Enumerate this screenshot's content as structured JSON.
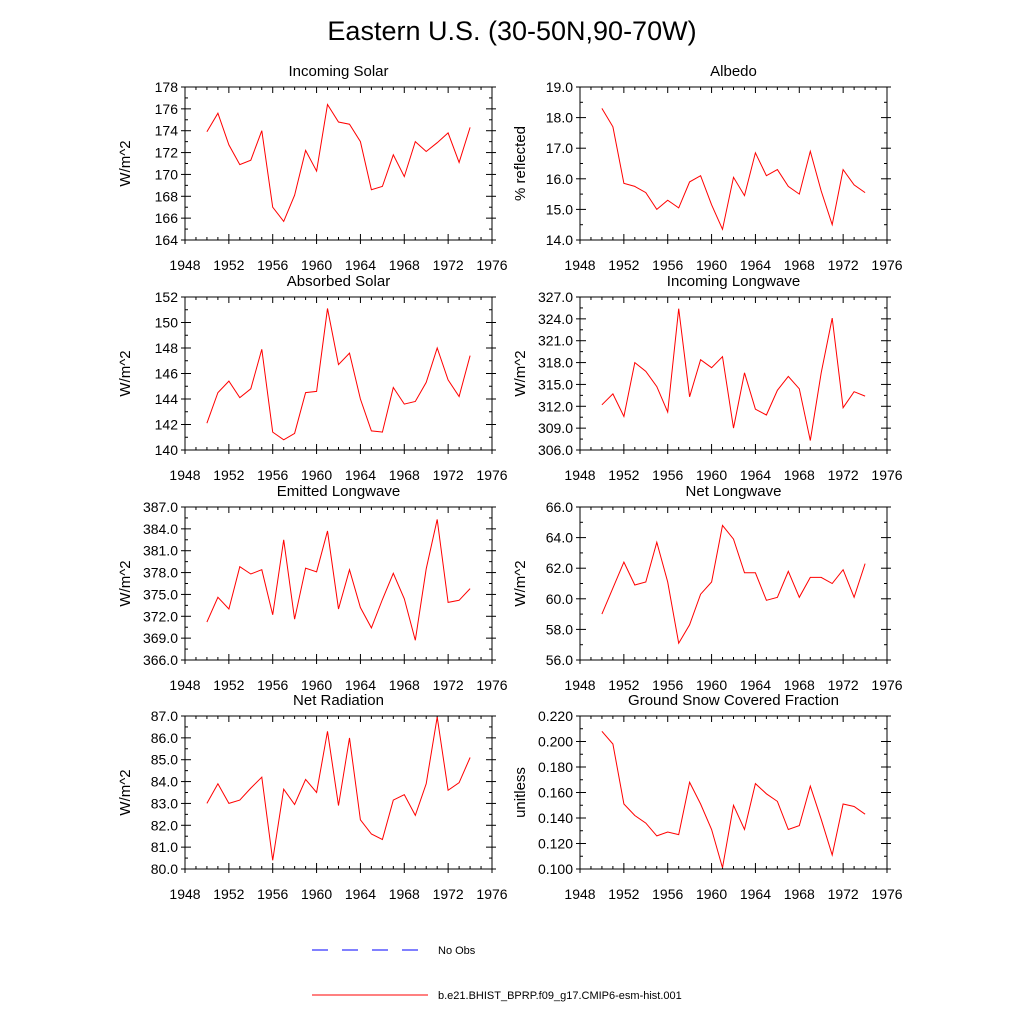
{
  "title": "Eastern U.S. (30-50N,90-70W)",
  "colors": {
    "model": "#ff0000",
    "obs": "#0000ff"
  },
  "legend": [
    {
      "label": "No Obs",
      "style": "dashed",
      "color": "#0000ff"
    },
    {
      "label": "b.e21.BHIST_BPRP.f09_g17.CMIP6-esm-hist.001",
      "style": "solid",
      "color": "#ff0000"
    }
  ],
  "chart_data": [
    {
      "type": "line",
      "title": "Incoming Solar",
      "ylabel": "W/m^2",
      "xlim": [
        1948,
        1976
      ],
      "xticks": [
        "1948",
        "1952",
        "1956",
        "1960",
        "1964",
        "1968",
        "1972",
        "1976"
      ],
      "ylim": [
        164,
        178
      ],
      "yticks": [
        "164",
        "166",
        "168",
        "170",
        "172",
        "174",
        "176",
        "178"
      ],
      "x": [
        1950,
        1951,
        1952,
        1953,
        1954,
        1955,
        1956,
        1957,
        1958,
        1959,
        1960,
        1961,
        1962,
        1963,
        1964,
        1965,
        1966,
        1967,
        1968,
        1969,
        1970,
        1971,
        1972,
        1973,
        1974
      ],
      "series": [
        {
          "name": "b.e21.BHIST_BPRP.f09_g17.CMIP6-esm-hist.001",
          "values": [
            173.9,
            175.6,
            172.7,
            170.9,
            171.3,
            174.0,
            167.0,
            165.7,
            168.1,
            172.2,
            170.3,
            176.4,
            174.8,
            174.6,
            173.0,
            168.6,
            168.9,
            171.8,
            169.8,
            173.0,
            172.1,
            172.9,
            173.8,
            171.1,
            174.3
          ]
        }
      ]
    },
    {
      "type": "line",
      "title": "Albedo",
      "ylabel": "% reflected",
      "xlim": [
        1948,
        1976
      ],
      "xticks": [
        "1948",
        "1952",
        "1956",
        "1960",
        "1964",
        "1968",
        "1972",
        "1976"
      ],
      "ylim": [
        14.0,
        19.0
      ],
      "yticks": [
        "14.0",
        "15.0",
        "16.0",
        "17.0",
        "18.0",
        "19.0"
      ],
      "x": [
        1950,
        1951,
        1952,
        1953,
        1954,
        1955,
        1956,
        1957,
        1958,
        1959,
        1960,
        1961,
        1962,
        1963,
        1964,
        1965,
        1966,
        1967,
        1968,
        1969,
        1970,
        1971,
        1972,
        1973,
        1974
      ],
      "series": [
        {
          "name": "b.e21.BHIST_BPRP.f09_g17.CMIP6-esm-hist.001",
          "values": [
            18.3,
            17.7,
            15.85,
            15.75,
            15.55,
            15.0,
            15.3,
            15.05,
            15.9,
            16.1,
            15.15,
            14.35,
            16.05,
            15.45,
            16.85,
            16.1,
            16.3,
            15.75,
            15.5,
            16.9,
            15.6,
            14.5,
            16.3,
            15.8,
            15.55
          ]
        }
      ]
    },
    {
      "type": "line",
      "title": "Absorbed Solar",
      "ylabel": "W/m^2",
      "xlim": [
        1948,
        1976
      ],
      "xticks": [
        "1948",
        "1952",
        "1956",
        "1960",
        "1964",
        "1968",
        "1972",
        "1976"
      ],
      "ylim": [
        140,
        152
      ],
      "yticks": [
        "140",
        "142",
        "144",
        "146",
        "148",
        "150",
        "152"
      ],
      "x": [
        1950,
        1951,
        1952,
        1953,
        1954,
        1955,
        1956,
        1957,
        1958,
        1959,
        1960,
        1961,
        1962,
        1963,
        1964,
        1965,
        1966,
        1967,
        1968,
        1969,
        1970,
        1971,
        1972,
        1973,
        1974
      ],
      "series": [
        {
          "name": "b.e21.BHIST_BPRP.f09_g17.CMIP6-esm-hist.001",
          "values": [
            142.1,
            144.5,
            145.4,
            144.1,
            144.8,
            147.9,
            141.4,
            140.8,
            141.3,
            144.5,
            144.6,
            151.1,
            146.7,
            147.6,
            144.0,
            141.5,
            141.4,
            144.9,
            143.6,
            143.8,
            145.3,
            148.0,
            145.5,
            144.2,
            147.4
          ]
        }
      ]
    },
    {
      "type": "line",
      "title": "Incoming Longwave",
      "ylabel": "W/m^2",
      "xlim": [
        1948,
        1976
      ],
      "xticks": [
        "1948",
        "1952",
        "1956",
        "1960",
        "1964",
        "1968",
        "1972",
        "1976"
      ],
      "ylim": [
        306.0,
        327.0
      ],
      "yticks": [
        "306.0",
        "309.0",
        "312.0",
        "315.0",
        "318.0",
        "321.0",
        "324.0",
        "327.0"
      ],
      "x": [
        1950,
        1951,
        1952,
        1953,
        1954,
        1955,
        1956,
        1957,
        1958,
        1959,
        1960,
        1961,
        1962,
        1963,
        1964,
        1965,
        1966,
        1967,
        1968,
        1969,
        1970,
        1971,
        1972,
        1973,
        1974
      ],
      "series": [
        {
          "name": "b.e21.BHIST_BPRP.f09_g17.CMIP6-esm-hist.001",
          "values": [
            312.2,
            313.7,
            310.6,
            318.0,
            316.8,
            314.7,
            311.2,
            325.4,
            313.3,
            318.4,
            317.3,
            318.8,
            309.0,
            316.6,
            311.6,
            310.8,
            314.2,
            316.1,
            314.4,
            307.3,
            316.6,
            324.1,
            311.8,
            314.0,
            313.4
          ]
        }
      ]
    },
    {
      "type": "line",
      "title": "Emitted Longwave",
      "ylabel": "W/m^2",
      "xlim": [
        1948,
        1976
      ],
      "xticks": [
        "1948",
        "1952",
        "1956",
        "1960",
        "1964",
        "1968",
        "1972",
        "1976"
      ],
      "ylim": [
        366.0,
        387.0
      ],
      "yticks": [
        "366.0",
        "369.0",
        "372.0",
        "375.0",
        "378.0",
        "381.0",
        "384.0",
        "387.0"
      ],
      "x": [
        1950,
        1951,
        1952,
        1953,
        1954,
        1955,
        1956,
        1957,
        1958,
        1959,
        1960,
        1961,
        1962,
        1963,
        1964,
        1965,
        1966,
        1967,
        1968,
        1969,
        1970,
        1971,
        1972,
        1973,
        1974
      ],
      "series": [
        {
          "name": "b.e21.BHIST_BPRP.f09_g17.CMIP6-esm-hist.001",
          "values": [
            371.2,
            374.6,
            373.0,
            378.8,
            377.8,
            378.4,
            372.2,
            382.5,
            371.6,
            378.6,
            378.1,
            383.7,
            373.0,
            378.4,
            373.2,
            370.4,
            374.3,
            377.9,
            374.4,
            368.7,
            378.5,
            385.3,
            373.9,
            374.2,
            375.8
          ]
        }
      ]
    },
    {
      "type": "line",
      "title": "Net Longwave",
      "ylabel": "W/m^2",
      "xlim": [
        1948,
        1976
      ],
      "xticks": [
        "1948",
        "1952",
        "1956",
        "1960",
        "1964",
        "1968",
        "1972",
        "1976"
      ],
      "ylim": [
        56.0,
        66.0
      ],
      "yticks": [
        "56.0",
        "58.0",
        "60.0",
        "62.0",
        "64.0",
        "66.0"
      ],
      "x": [
        1950,
        1951,
        1952,
        1953,
        1954,
        1955,
        1956,
        1957,
        1958,
        1959,
        1960,
        1961,
        1962,
        1963,
        1964,
        1965,
        1966,
        1967,
        1968,
        1969,
        1970,
        1971,
        1972,
        1973,
        1974
      ],
      "series": [
        {
          "name": "b.e21.BHIST_BPRP.f09_g17.CMIP6-esm-hist.001",
          "values": [
            59.0,
            60.7,
            62.4,
            60.9,
            61.1,
            63.7,
            61.1,
            57.1,
            58.3,
            60.3,
            61.1,
            64.8,
            63.9,
            61.7,
            61.7,
            59.9,
            60.1,
            61.8,
            60.1,
            61.4,
            61.4,
            61.0,
            61.9,
            60.1,
            62.3
          ]
        }
      ]
    },
    {
      "type": "line",
      "title": "Net Radiation",
      "ylabel": "W/m^2",
      "xlim": [
        1948,
        1976
      ],
      "xticks": [
        "1948",
        "1952",
        "1956",
        "1960",
        "1964",
        "1968",
        "1972",
        "1976"
      ],
      "ylim": [
        80.0,
        87.0
      ],
      "yticks": [
        "80.0",
        "81.0",
        "82.0",
        "83.0",
        "84.0",
        "85.0",
        "86.0",
        "87.0"
      ],
      "x": [
        1950,
        1951,
        1952,
        1953,
        1954,
        1955,
        1956,
        1957,
        1958,
        1959,
        1960,
        1961,
        1962,
        1963,
        1964,
        1965,
        1966,
        1967,
        1968,
        1969,
        1970,
        1971,
        1972,
        1973,
        1974
      ],
      "series": [
        {
          "name": "b.e21.BHIST_BPRP.f09_g17.CMIP6-esm-hist.001",
          "values": [
            83.0,
            83.9,
            83.0,
            83.15,
            83.7,
            84.2,
            80.4,
            83.65,
            82.95,
            84.1,
            83.5,
            86.3,
            82.9,
            86.0,
            82.25,
            81.6,
            81.35,
            83.15,
            83.4,
            82.45,
            83.9,
            86.95,
            83.6,
            83.95,
            85.1
          ]
        }
      ]
    },
    {
      "type": "line",
      "title": "Ground Snow Covered Fraction",
      "ylabel": "unitless",
      "xlim": [
        1948,
        1976
      ],
      "xticks": [
        "1948",
        "1952",
        "1956",
        "1960",
        "1964",
        "1968",
        "1972",
        "1976"
      ],
      "ylim": [
        0.1,
        0.22
      ],
      "yticks": [
        "0.100",
        "0.120",
        "0.140",
        "0.160",
        "0.180",
        "0.200",
        "0.220"
      ],
      "x": [
        1950,
        1951,
        1952,
        1953,
        1954,
        1955,
        1956,
        1957,
        1958,
        1959,
        1960,
        1961,
        1962,
        1963,
        1964,
        1965,
        1966,
        1967,
        1968,
        1969,
        1970,
        1971,
        1972,
        1973,
        1974
      ],
      "series": [
        {
          "name": "b.e21.BHIST_BPRP.f09_g17.CMIP6-esm-hist.001",
          "values": [
            0.208,
            0.198,
            0.151,
            0.142,
            0.136,
            0.126,
            0.129,
            0.127,
            0.168,
            0.151,
            0.131,
            0.101,
            0.15,
            0.131,
            0.167,
            0.159,
            0.153,
            0.131,
            0.134,
            0.165,
            0.139,
            0.111,
            0.151,
            0.149,
            0.143
          ]
        }
      ]
    }
  ]
}
